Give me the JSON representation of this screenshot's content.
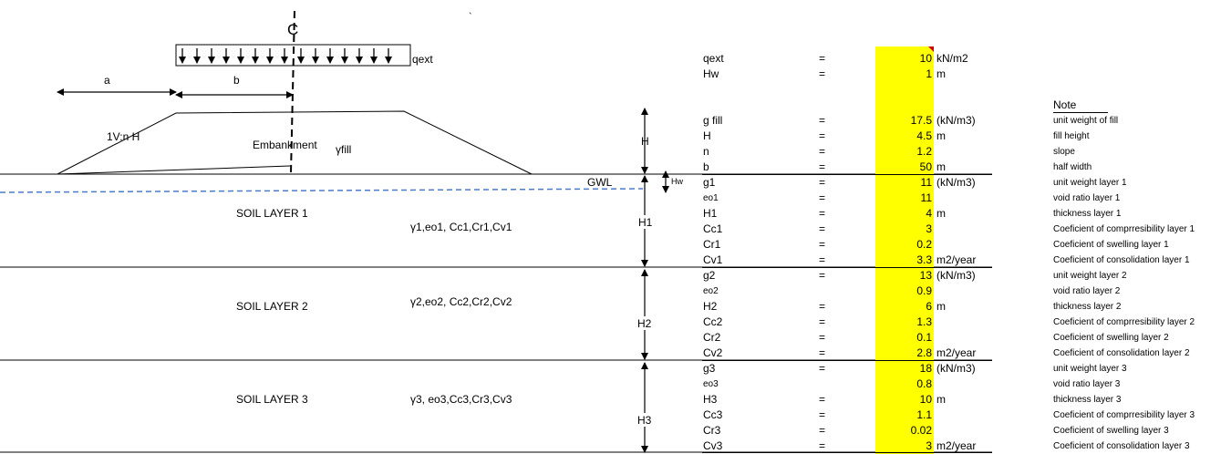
{
  "diagram": {
    "centerline_label": "C",
    "load_label": "qext",
    "dim_a": "a",
    "dim_b": "b",
    "slope_label": "1V:n H",
    "embankment_label": "Embankment",
    "fill_label": "γfill",
    "gwl_label": "GWL",
    "hw_label": "Hw",
    "h_label": "H",
    "h1_label": "H1",
    "h2_label": "H2",
    "h3_label": "H3",
    "soil_layer_1": "SOIL LAYER 1",
    "soil_layer_2": "SOIL LAYER 2",
    "soil_layer_3": "SOIL LAYER 3",
    "layer_1_params": "γ1,eo1, Cc1,Cr1,Cv1",
    "layer_2_params": "γ2,eo2, Cc2,Cr2,Cv2",
    "layer_3_params": "γ3, eo3,Cc3,Cr3,Cv3",
    "stray_mark": "`"
  },
  "table": {
    "note_header": "Note",
    "rows": [
      {
        "label": "qext",
        "eq": "=",
        "value": "10",
        "unit": "kN/m2",
        "note": ""
      },
      {
        "label": "Hw",
        "eq": "=",
        "value": "1",
        "unit": "m",
        "note": ""
      },
      {
        "label": "g fill",
        "eq": "=",
        "value": "17.5",
        "unit": "(kN/m3)",
        "note": "unit weight of fill"
      },
      {
        "label": "H",
        "eq": "=",
        "value": "4.5",
        "unit": "m",
        "note": "fill height"
      },
      {
        "label": "n",
        "eq": "=",
        "value": "1.2",
        "unit": "",
        "note": "slope"
      },
      {
        "label": "b",
        "eq": "=",
        "value": "50",
        "unit": "m",
        "note": "half width"
      },
      {
        "label": "g1",
        "eq": "=",
        "value": "11",
        "unit": "(kN/m3)",
        "note": "unit weight layer 1"
      },
      {
        "label": "eo1",
        "eq": "=",
        "value": "11",
        "unit": "",
        "note": "void ratio layer 1"
      },
      {
        "label": "H1",
        "eq": "=",
        "value": "4",
        "unit": "m",
        "note": "thickness layer 1"
      },
      {
        "label": "Cc1",
        "eq": "=",
        "value": "3",
        "unit": "",
        "note": "Coeficient of comprresibility layer 1"
      },
      {
        "label": "Cr1",
        "eq": "=",
        "value": "0.2",
        "unit": "",
        "note": "Coeficient of swelling layer 1"
      },
      {
        "label": "Cv1",
        "eq": "=",
        "value": "3.3",
        "unit": "m2/year",
        "note": "Coeficient of consolidation layer 1"
      },
      {
        "label": "g2",
        "eq": "=",
        "value": "13",
        "unit": "(kN/m3)",
        "note": "unit weight layer 2"
      },
      {
        "label": "eo2",
        "eq": "",
        "value": "0.9",
        "unit": "",
        "note": "void ratio layer 2"
      },
      {
        "label": "H2",
        "eq": "=",
        "value": "6",
        "unit": "m",
        "note": "thickness layer 2"
      },
      {
        "label": "Cc2",
        "eq": "=",
        "value": "1.3",
        "unit": "",
        "note": "Coeficient of comprresibility layer 2"
      },
      {
        "label": "Cr2",
        "eq": "=",
        "value": "0.1",
        "unit": "",
        "note": "Coeficient of swelling layer 2"
      },
      {
        "label": "Cv2",
        "eq": "=",
        "value": "2.8",
        "unit": "m2/year",
        "note": "Coeficient of consolidation layer 2"
      },
      {
        "label": "g3",
        "eq": "=",
        "value": "18",
        "unit": "(kN/m3)",
        "note": "unit weight layer 3"
      },
      {
        "label": "eo3",
        "eq": "",
        "value": "0.8",
        "unit": "",
        "note": "void ratio layer 3"
      },
      {
        "label": "H3",
        "eq": "=",
        "value": "10",
        "unit": "m",
        "note": "thickness layer 3"
      },
      {
        "label": "Cc3",
        "eq": "=",
        "value": "1.1",
        "unit": "",
        "note": "Coeficient of comprresibility layer 3"
      },
      {
        "label": "Cr3",
        "eq": "=",
        "value": "0.02",
        "unit": "",
        "note": "Coeficient of swelling layer 3"
      },
      {
        "label": "Cv3",
        "eq": "=",
        "value": "3",
        "unit": "m2/year",
        "note": "Coeficient of consolidation layer 3"
      }
    ]
  }
}
